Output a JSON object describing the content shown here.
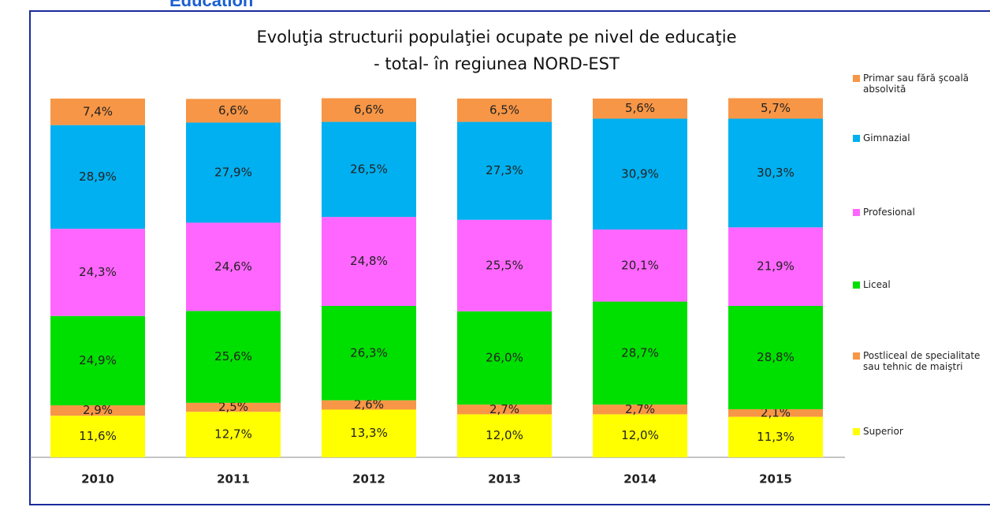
{
  "header": "Education",
  "chart_data": {
    "type": "stacked_bar",
    "title": "Evoluţia structurii populaţiei ocupate pe nivel de educaţie",
    "subtitle": "- total- în regiunea NORD-EST",
    "categories": [
      "2010",
      "2011",
      "2012",
      "2013",
      "2014",
      "2015"
    ],
    "series": [
      {
        "name": "Superior",
        "color": "#ffff00",
        "values": [
          11.6,
          12.7,
          13.3,
          12.0,
          12.0,
          11.3
        ],
        "value_labels": [
          "11,6%",
          "12,7%",
          "13,3%",
          "12,0%",
          "12,0%",
          "11,3%"
        ]
      },
      {
        "name": "Postliceal de specialitate sau tehnic de maiştri",
        "color": "#f79646",
        "values": [
          2.9,
          2.5,
          2.6,
          2.7,
          2.7,
          2.1
        ],
        "value_labels": [
          "2,9%",
          "2,5%",
          "2,6%",
          "2,7%",
          "2,7%",
          "2,1%"
        ]
      },
      {
        "name": "Liceal",
        "color": "#00e000",
        "values": [
          24.9,
          25.6,
          26.3,
          26.0,
          28.7,
          28.8
        ],
        "value_labels": [
          "24,9%",
          "25,6%",
          "26,3%",
          "26,0%",
          "28,7%",
          "28,8%"
        ]
      },
      {
        "name": "Profesional",
        "color": "#ff66ff",
        "values": [
          24.3,
          24.6,
          24.8,
          25.5,
          20.1,
          21.9
        ],
        "value_labels": [
          "24,3%",
          "24,6%",
          "24,8%",
          "25,5%",
          "20,1%",
          "21,9%"
        ]
      },
      {
        "name": "Gimnazial",
        "color": "#00b0f0",
        "values": [
          28.9,
          27.9,
          26.5,
          27.3,
          30.9,
          30.3
        ],
        "value_labels": [
          "28,9%",
          "27,9%",
          "26,5%",
          "27,3%",
          "30,9%",
          "30,3%"
        ]
      },
      {
        "name": "Primar sau fără şcoală absolvită",
        "color": "#f79646",
        "values": [
          7.4,
          6.6,
          6.6,
          6.5,
          5.6,
          5.7
        ],
        "value_labels": [
          "7,4%",
          "6,6%",
          "6,6%",
          "6,5%",
          "5,6%",
          "5,7%"
        ]
      }
    ],
    "ylim": [
      0,
      100
    ]
  }
}
